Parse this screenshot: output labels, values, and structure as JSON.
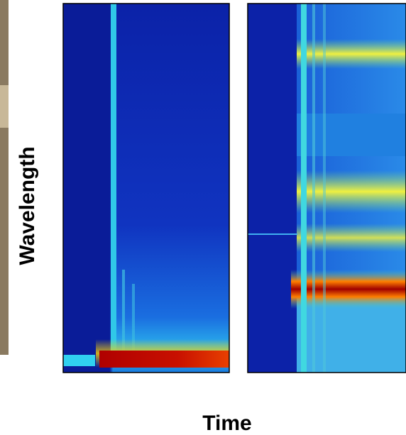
{
  "labels": {
    "y": "Wavelength",
    "x": "Time"
  }
}
